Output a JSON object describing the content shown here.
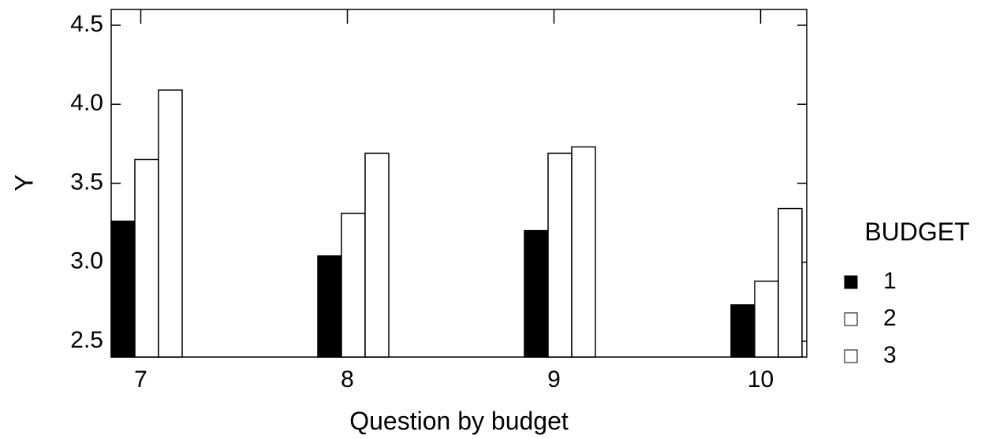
{
  "chart_data": {
    "type": "bar",
    "xlabel": "Question by budget",
    "ylabel": "Y",
    "categories": [
      "7",
      "8",
      "9",
      "10"
    ],
    "ylim": [
      2.4,
      4.6
    ],
    "yticks": [
      "2.5",
      "3.0",
      "3.5",
      "4.0",
      "4.5"
    ],
    "legend": {
      "title": "BUDGET",
      "placement": "right",
      "entries": [
        "1",
        "2",
        "3"
      ]
    },
    "series": [
      {
        "name": "1",
        "color": "#000000",
        "values": [
          3.26,
          3.04,
          3.2,
          2.73
        ]
      },
      {
        "name": "2",
        "color": "#ffffff",
        "values": [
          3.65,
          3.31,
          3.69,
          2.88
        ]
      },
      {
        "name": "3",
        "color": "#ffffff",
        "values": [
          4.09,
          3.69,
          3.73,
          3.34
        ]
      }
    ]
  }
}
